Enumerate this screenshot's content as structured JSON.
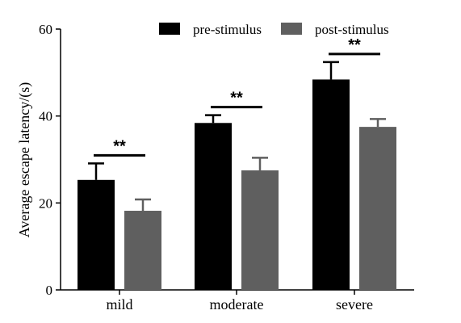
{
  "chart_data": {
    "type": "bar",
    "categories": [
      "mild",
      "moderate",
      "severe"
    ],
    "series": [
      {
        "name": "pre-stimulus",
        "values": [
          25.3,
          38.4,
          48.4
        ],
        "errors": [
          3.8,
          1.8,
          4.0
        ],
        "color": "#000000"
      },
      {
        "name": "post-stimulus",
        "values": [
          18.2,
          27.5,
          37.5
        ],
        "errors": [
          2.6,
          2.9,
          1.8
        ],
        "color": "#5f5f5f"
      }
    ],
    "significance": [
      "**",
      "**",
      "**"
    ],
    "ylabel": "Average escape latency/(s)",
    "xlabel": "",
    "title": "",
    "ylim": [
      0,
      60
    ],
    "yticks": [
      "0",
      "20",
      "40",
      "60"
    ],
    "legend_position": "top-right",
    "grid": false
  }
}
